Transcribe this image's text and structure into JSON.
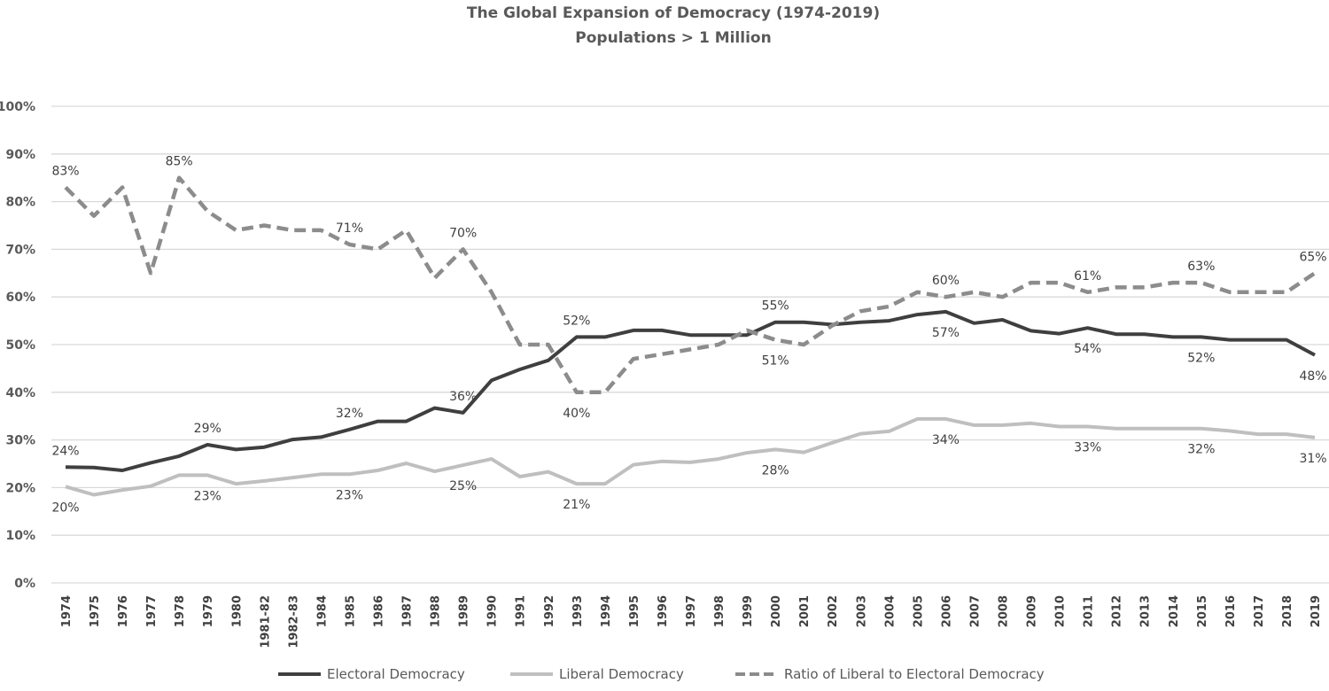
{
  "chart_data": {
    "type": "line",
    "title": "The Global Expansion of Democracy (1974-2019)",
    "subtitle": "Populations > 1 Million",
    "xlabel": "",
    "ylabel": "",
    "ylim": [
      0,
      100
    ],
    "yticks": [
      0,
      10,
      20,
      30,
      40,
      50,
      60,
      70,
      80,
      90,
      100
    ],
    "ytick_labels": [
      "0%",
      "10%",
      "20%",
      "30%",
      "40%",
      "50%",
      "60%",
      "70%",
      "80%",
      "90%",
      "100%"
    ],
    "grid": true,
    "legend_position": "bottom",
    "categories": [
      "1974",
      "1975",
      "1976",
      "1977",
      "1978",
      "1979",
      "1980",
      "1981-82",
      "1982-83",
      "1984",
      "1985",
      "1986",
      "1987",
      "1988",
      "1989",
      "1990",
      "1991",
      "1992",
      "1993",
      "1994",
      "1995",
      "1996",
      "1997",
      "1998",
      "1999",
      "2000",
      "2001",
      "2002",
      "2003",
      "2004",
      "2005",
      "2006",
      "2007",
      "2008",
      "2009",
      "2010",
      "2011",
      "2012",
      "2013",
      "2014",
      "2015",
      "2016",
      "2017",
      "2018",
      "2019"
    ],
    "series": [
      {
        "name": "Electoral Democracy",
        "color": "#3f3f3f",
        "style": "solid",
        "values": [
          24.3,
          24.2,
          23.6,
          25.2,
          26.6,
          29.0,
          28.0,
          28.5,
          30.1,
          30.6,
          32.2,
          33.9,
          33.9,
          36.7,
          35.7,
          42.5,
          44.8,
          46.7,
          51.6,
          51.6,
          53.0,
          53.0,
          52.0,
          52.0,
          52.0,
          54.7,
          54.7,
          54.2,
          54.7,
          55.0,
          56.3,
          56.9,
          54.5,
          55.2,
          52.9,
          52.3,
          53.5,
          52.2,
          52.2,
          51.6,
          51.6,
          51.0,
          51.0,
          51.0,
          47.8
        ]
      },
      {
        "name": "Liberal Democracy",
        "color": "#bfbfbf",
        "style": "solid",
        "values": [
          20.2,
          18.5,
          19.5,
          20.3,
          22.6,
          22.6,
          20.8,
          21.4,
          22.1,
          22.8,
          22.8,
          23.6,
          25.1,
          23.4,
          24.7,
          26.0,
          22.3,
          23.3,
          20.8,
          20.8,
          24.8,
          25.5,
          25.3,
          26.0,
          27.3,
          28.0,
          27.4,
          29.4,
          31.3,
          31.8,
          34.4,
          34.4,
          33.1,
          33.1,
          33.5,
          32.8,
          32.8,
          32.4,
          32.4,
          32.4,
          32.4,
          31.9,
          31.2,
          31.2,
          30.5
        ]
      },
      {
        "name": "Ratio of Liberal to Electoral Democracy",
        "color": "#8c8c8c",
        "style": "dashed",
        "values": [
          83,
          77,
          83,
          65,
          85,
          78,
          74,
          75,
          74,
          74,
          71,
          70,
          74,
          64,
          70,
          61,
          50,
          50,
          40,
          40,
          47,
          48,
          49,
          50,
          53,
          51,
          50,
          54,
          57,
          58,
          61,
          60,
          61,
          60,
          63,
          63,
          61,
          62,
          62,
          63,
          63,
          61,
          61,
          61,
          65
        ]
      }
    ],
    "data_labels": [
      {
        "series": 0,
        "index": 0,
        "text": "24%",
        "pos": "above"
      },
      {
        "series": 0,
        "index": 5,
        "text": "29%",
        "pos": "above"
      },
      {
        "series": 0,
        "index": 10,
        "text": "32%",
        "pos": "above"
      },
      {
        "series": 0,
        "index": 14,
        "text": "36%",
        "pos": "above"
      },
      {
        "series": 0,
        "index": 18,
        "text": "52%",
        "pos": "above"
      },
      {
        "series": 0,
        "index": 25,
        "text": "55%",
        "pos": "above"
      },
      {
        "series": 0,
        "index": 31,
        "text": "57%",
        "pos": "below"
      },
      {
        "series": 0,
        "index": 36,
        "text": "54%",
        "pos": "below"
      },
      {
        "series": 0,
        "index": 40,
        "text": "52%",
        "pos": "below"
      },
      {
        "series": 0,
        "index": 44,
        "text": "48%",
        "pos": "below"
      },
      {
        "series": 1,
        "index": 0,
        "text": "20%",
        "pos": "below"
      },
      {
        "series": 1,
        "index": 5,
        "text": "23%",
        "pos": "below"
      },
      {
        "series": 1,
        "index": 10,
        "text": "23%",
        "pos": "below"
      },
      {
        "series": 1,
        "index": 14,
        "text": "25%",
        "pos": "below"
      },
      {
        "series": 1,
        "index": 18,
        "text": "21%",
        "pos": "below"
      },
      {
        "series": 1,
        "index": 25,
        "text": "28%",
        "pos": "below"
      },
      {
        "series": 1,
        "index": 31,
        "text": "34%",
        "pos": "below"
      },
      {
        "series": 1,
        "index": 36,
        "text": "33%",
        "pos": "below"
      },
      {
        "series": 1,
        "index": 40,
        "text": "32%",
        "pos": "below"
      },
      {
        "series": 1,
        "index": 44,
        "text": "31%",
        "pos": "below"
      },
      {
        "series": 2,
        "index": 0,
        "text": "83%",
        "pos": "above"
      },
      {
        "series": 2,
        "index": 4,
        "text": "85%",
        "pos": "above"
      },
      {
        "series": 2,
        "index": 10,
        "text": "71%",
        "pos": "above"
      },
      {
        "series": 2,
        "index": 14,
        "text": "70%",
        "pos": "above"
      },
      {
        "series": 2,
        "index": 18,
        "text": "40%",
        "pos": "below"
      },
      {
        "series": 2,
        "index": 25,
        "text": "51%",
        "pos": "below"
      },
      {
        "series": 2,
        "index": 31,
        "text": "60%",
        "pos": "above"
      },
      {
        "series": 2,
        "index": 36,
        "text": "61%",
        "pos": "above"
      },
      {
        "series": 2,
        "index": 40,
        "text": "63%",
        "pos": "above"
      },
      {
        "series": 2,
        "index": 44,
        "text": "65%",
        "pos": "above"
      }
    ]
  }
}
